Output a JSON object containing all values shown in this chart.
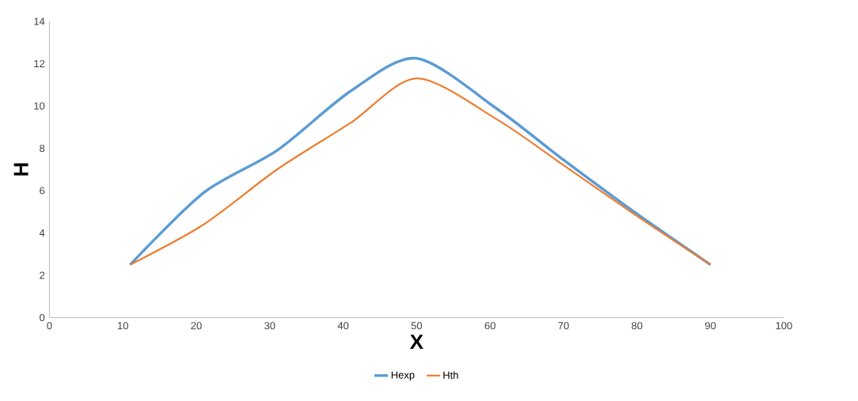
{
  "chart_data": {
    "type": "line",
    "xlabel": "X",
    "ylabel": "H",
    "x": [
      11,
      21,
      31,
      41,
      50,
      61,
      70,
      80,
      90
    ],
    "series": [
      {
        "name": "Hexp",
        "color": "#5b9bd5",
        "values": [
          2.5,
          5.9,
          7.9,
          10.7,
          12.25,
          9.85,
          7.45,
          4.9,
          2.5
        ]
      },
      {
        "name": "Hth",
        "color": "#ed7d31",
        "values": [
          2.5,
          4.4,
          7.0,
          9.2,
          11.3,
          9.35,
          7.2,
          4.8,
          2.5
        ]
      }
    ],
    "xlim": [
      0,
      100
    ],
    "xticks": [
      0,
      10,
      20,
      30,
      40,
      50,
      60,
      70,
      80,
      90,
      100
    ],
    "ylim": [
      0,
      14
    ],
    "yticks": [
      0,
      2,
      4,
      6,
      8,
      10,
      12,
      14
    ],
    "grid": false,
    "legend": "bottom",
    "marker": "none",
    "line_style": "solid"
  }
}
